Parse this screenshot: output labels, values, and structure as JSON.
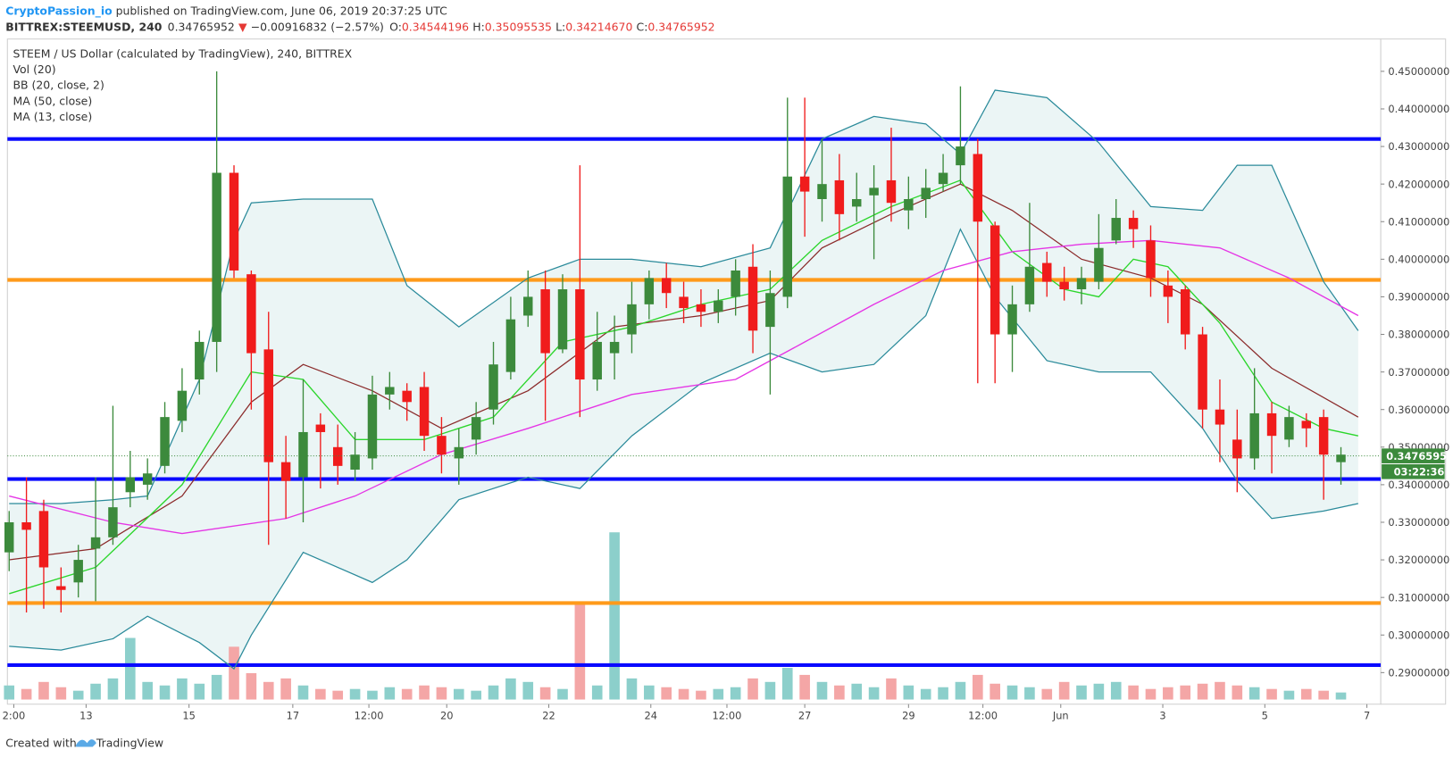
{
  "header": {
    "author": "CryptoPassion_io",
    "published": " published on TradingView.com, June 06, 2019 20:37:25 UTC",
    "symbol": "BITTREX:STEEMUSD, 240",
    "last": "0.34765952",
    "arrow": "▼",
    "change": "−0.00916832 (−2.57%)",
    "o_label": "O:",
    "o_value": "0.34544196",
    "h_label": "H:",
    "h_value": "0.35095535",
    "l_label": "L:",
    "l_value": "0.34214670",
    "c_label": "C:",
    "c_value": "0.34765952"
  },
  "footer": {
    "created": "Created with",
    "brand": "TradingView"
  },
  "chart_data": {
    "type": "candlestick",
    "title": "STEEM / US Dollar (calculated by TradingView), 240, BITTREX",
    "volume_name": "Vol (20)",
    "up_color": "#3c8a3c",
    "down_color": "#f01c1c",
    "volume_up_color": "#8ccfcb",
    "volume_down_color": "#f4a6a6",
    "xlim": [
      -0.1,
      79.3
    ],
    "ylim": [
      0.2816,
      0.4586
    ],
    "volume_lim": [
      0,
      100
    ],
    "xticks": [
      {
        "value": 0.27,
        "label": "2:00"
      },
      {
        "value": 4.45,
        "label": "13"
      },
      {
        "value": 10.4,
        "label": "15"
      },
      {
        "value": 16.4,
        "label": "17"
      },
      {
        "value": 20.8,
        "label": "12:00"
      },
      {
        "value": 25.3,
        "label": "20"
      },
      {
        "value": 31.2,
        "label": "22"
      },
      {
        "value": 37.1,
        "label": "24"
      },
      {
        "value": 41.5,
        "label": "12:00"
      },
      {
        "value": 46,
        "label": "27"
      },
      {
        "value": 52,
        "label": "29"
      },
      {
        "value": 56.3,
        "label": "12:00"
      },
      {
        "value": 60.8,
        "label": "Jun"
      },
      {
        "value": 66.7,
        "label": "3"
      },
      {
        "value": 72.6,
        "label": "5"
      },
      {
        "value": 78.5,
        "label": "7"
      }
    ],
    "yticks": [
      {
        "value": 0.29,
        "label": "0.29000000"
      },
      {
        "value": 0.3,
        "label": "0.30000000"
      },
      {
        "value": 0.31,
        "label": "0.31000000"
      },
      {
        "value": 0.32,
        "label": "0.32000000"
      },
      {
        "value": 0.33,
        "label": "0.33000000"
      },
      {
        "value": 0.34,
        "label": "0.34000000"
      },
      {
        "value": 0.35,
        "label": "0.35000000"
      },
      {
        "value": 0.36,
        "label": "0.36000000"
      },
      {
        "value": 0.37,
        "label": "0.37000000"
      },
      {
        "value": 0.38,
        "label": "0.38000000"
      },
      {
        "value": 0.39,
        "label": "0.39000000"
      },
      {
        "value": 0.4,
        "label": "0.40000000"
      },
      {
        "value": 0.41,
        "label": "0.41000000"
      },
      {
        "value": 0.42,
        "label": "0.42000000"
      },
      {
        "value": 0.43,
        "label": "0.43000000"
      },
      {
        "value": 0.44,
        "label": "0.44000000"
      },
      {
        "value": 0.45,
        "label": "0.45000000"
      }
    ],
    "open": [
      0.322,
      0.33,
      0.333,
      0.313,
      0.314,
      0.323,
      0.326,
      0.338,
      0.34,
      0.345,
      0.357,
      0.368,
      0.378,
      0.423,
      0.396,
      0.376,
      0.346,
      0.342,
      0.356,
      0.35,
      0.344,
      0.347,
      0.364,
      0.365,
      0.366,
      0.353,
      0.347,
      0.352,
      0.36,
      0.37,
      0.385,
      0.392,
      0.376,
      0.392,
      0.368,
      0.375,
      0.38,
      0.388,
      0.395,
      0.39,
      0.388,
      0.386,
      0.39,
      0.398,
      0.382,
      0.39,
      0.422,
      0.416,
      0.421,
      0.414,
      0.417,
      0.421,
      0.413,
      0.416,
      0.42,
      0.425,
      0.428,
      0.409,
      0.38,
      0.388,
      0.399,
      0.394,
      0.392,
      0.394,
      0.405,
      0.411,
      0.405,
      0.393,
      0.392,
      0.38,
      0.36,
      0.352,
      0.347,
      0.359,
      0.352,
      0.357,
      0.358,
      0.346
    ],
    "high": [
      0.333,
      0.342,
      0.336,
      0.318,
      0.324,
      0.342,
      0.361,
      0.349,
      0.347,
      0.362,
      0.371,
      0.381,
      0.45,
      0.425,
      0.397,
      0.386,
      0.353,
      0.368,
      0.359,
      0.356,
      0.354,
      0.369,
      0.37,
      0.367,
      0.37,
      0.358,
      0.355,
      0.362,
      0.378,
      0.39,
      0.397,
      0.397,
      0.396,
      0.425,
      0.386,
      0.385,
      0.394,
      0.397,
      0.399,
      0.394,
      0.392,
      0.392,
      0.4,
      0.404,
      0.397,
      0.443,
      0.443,
      0.432,
      0.428,
      0.423,
      0.425,
      0.435,
      0.422,
      0.424,
      0.428,
      0.446,
      0.432,
      0.41,
      0.393,
      0.415,
      0.402,
      0.398,
      0.398,
      0.412,
      0.416,
      0.413,
      0.409,
      0.397,
      0.393,
      0.382,
      0.368,
      0.36,
      0.371,
      0.362,
      0.361,
      0.359,
      0.36,
      0.35
    ],
    "low": [
      0.317,
      0.306,
      0.307,
      0.306,
      0.31,
      0.309,
      0.324,
      0.334,
      0.336,
      0.343,
      0.354,
      0.364,
      0.37,
      0.395,
      0.36,
      0.324,
      0.331,
      0.33,
      0.339,
      0.34,
      0.341,
      0.344,
      0.36,
      0.357,
      0.349,
      0.343,
      0.34,
      0.348,
      0.356,
      0.368,
      0.382,
      0.357,
      0.375,
      0.358,
      0.365,
      0.368,
      0.375,
      0.384,
      0.387,
      0.383,
      0.382,
      0.383,
      0.385,
      0.375,
      0.364,
      0.387,
      0.406,
      0.41,
      0.405,
      0.41,
      0.4,
      0.41,
      0.408,
      0.411,
      0.418,
      0.42,
      0.367,
      0.367,
      0.37,
      0.386,
      0.39,
      0.389,
      0.388,
      0.392,
      0.404,
      0.403,
      0.39,
      0.383,
      0.376,
      0.355,
      0.346,
      0.338,
      0.344,
      0.343,
      0.35,
      0.35,
      0.336,
      0.34
    ],
    "close": [
      0.33,
      0.328,
      0.318,
      0.312,
      0.32,
      0.326,
      0.334,
      0.342,
      0.343,
      0.358,
      0.365,
      0.378,
      0.423,
      0.397,
      0.375,
      0.346,
      0.341,
      0.354,
      0.354,
      0.345,
      0.348,
      0.364,
      0.366,
      0.362,
      0.353,
      0.348,
      0.35,
      0.358,
      0.372,
      0.384,
      0.39,
      0.375,
      0.392,
      0.368,
      0.378,
      0.378,
      0.388,
      0.395,
      0.391,
      0.387,
      0.386,
      0.389,
      0.397,
      0.381,
      0.391,
      0.422,
      0.418,
      0.42,
      0.412,
      0.416,
      0.419,
      0.415,
      0.416,
      0.419,
      0.423,
      0.43,
      0.41,
      0.38,
      0.388,
      0.398,
      0.394,
      0.392,
      0.395,
      0.403,
      0.411,
      0.408,
      0.395,
      0.39,
      0.38,
      0.36,
      0.356,
      0.347,
      0.359,
      0.353,
      0.358,
      0.355,
      0.348,
      0.348
    ],
    "volume": [
      8,
      6,
      10,
      7,
      5,
      9,
      12,
      35,
      10,
      8,
      12,
      9,
      14,
      30,
      15,
      10,
      12,
      8,
      6,
      5,
      6,
      5,
      7,
      6,
      8,
      7,
      6,
      5,
      8,
      12,
      10,
      7,
      6,
      55,
      8,
      95,
      12,
      8,
      7,
      6,
      5,
      6,
      7,
      12,
      10,
      18,
      14,
      10,
      8,
      9,
      7,
      12,
      8,
      6,
      7,
      10,
      14,
      9,
      8,
      7,
      6,
      10,
      8,
      9,
      10,
      8,
      6,
      7,
      8,
      9,
      10,
      8,
      7,
      6,
      5,
      6,
      5,
      4
    ],
    "bb": {
      "name": "BB (20, close, 2)",
      "color": "#2a8a9a",
      "fill": "#e6f3f3",
      "x": [
        0,
        3,
        6,
        8,
        11,
        13,
        14,
        17,
        21,
        23,
        26,
        30,
        33,
        36,
        40,
        44,
        47,
        50,
        53,
        55,
        57,
        60,
        63,
        66,
        69,
        71,
        73,
        76,
        78
      ],
      "upper": [
        0.335,
        0.335,
        0.336,
        0.337,
        0.368,
        0.405,
        0.415,
        0.416,
        0.416,
        0.393,
        0.382,
        0.395,
        0.4,
        0.4,
        0.398,
        0.403,
        0.432,
        0.438,
        0.436,
        0.428,
        0.445,
        0.443,
        0.431,
        0.414,
        0.413,
        0.425,
        0.425,
        0.394,
        0.381
      ],
      "lower": [
        0.297,
        0.296,
        0.299,
        0.305,
        0.298,
        0.291,
        0.3,
        0.322,
        0.314,
        0.32,
        0.336,
        0.342,
        0.339,
        0.353,
        0.367,
        0.375,
        0.37,
        0.372,
        0.385,
        0.408,
        0.39,
        0.373,
        0.37,
        0.37,
        0.355,
        0.341,
        0.331,
        0.333,
        0.335
      ],
      "basis_color": "#8b2b2b",
      "basis_x": [
        0,
        5,
        10,
        14,
        17,
        21,
        25,
        30,
        35,
        40,
        44,
        47,
        51,
        55,
        58,
        62,
        66,
        69,
        73,
        78
      ],
      "basis": [
        0.32,
        0.323,
        0.337,
        0.362,
        0.372,
        0.365,
        0.355,
        0.365,
        0.382,
        0.385,
        0.389,
        0.403,
        0.412,
        0.42,
        0.413,
        0.4,
        0.395,
        0.388,
        0.371,
        0.358
      ]
    },
    "indicators": [
      {
        "name": "MA (13, close)",
        "color": "#2bd62b",
        "x": [
          0,
          5,
          10,
          14,
          17,
          20,
          24,
          28,
          32,
          36,
          40,
          44,
          47,
          51,
          55,
          58,
          61,
          63,
          65,
          67,
          70,
          73,
          76,
          78
        ],
        "values": [
          0.311,
          0.318,
          0.34,
          0.37,
          0.368,
          0.352,
          0.352,
          0.358,
          0.378,
          0.382,
          0.388,
          0.392,
          0.405,
          0.414,
          0.421,
          0.402,
          0.392,
          0.39,
          0.4,
          0.398,
          0.383,
          0.362,
          0.355,
          0.353
        ]
      },
      {
        "name": "MA (50, close)",
        "color": "#e535e5",
        "x": [
          0,
          6,
          10,
          16,
          20,
          25,
          30,
          36,
          42,
          46,
          50,
          54,
          58,
          62,
          66,
          70,
          74,
          78
        ],
        "values": [
          0.337,
          0.33,
          0.327,
          0.331,
          0.337,
          0.348,
          0.355,
          0.364,
          0.368,
          0.378,
          0.388,
          0.397,
          0.402,
          0.404,
          0.405,
          0.403,
          0.395,
          0.385
        ]
      }
    ],
    "levels": [
      {
        "value": 0.432,
        "color": "#0a0aff"
      },
      {
        "value": 0.3945,
        "color": "#ff9a1a"
      },
      {
        "value": 0.3415,
        "color": "#0a0aff"
      },
      {
        "value": 0.3085,
        "color": "#ff9a1a"
      },
      {
        "value": 0.292,
        "color": "#0a0aff"
      }
    ],
    "last_price": {
      "value": 0.34765952,
      "label": "0.34765952"
    },
    "countdown": "03:22:36"
  }
}
